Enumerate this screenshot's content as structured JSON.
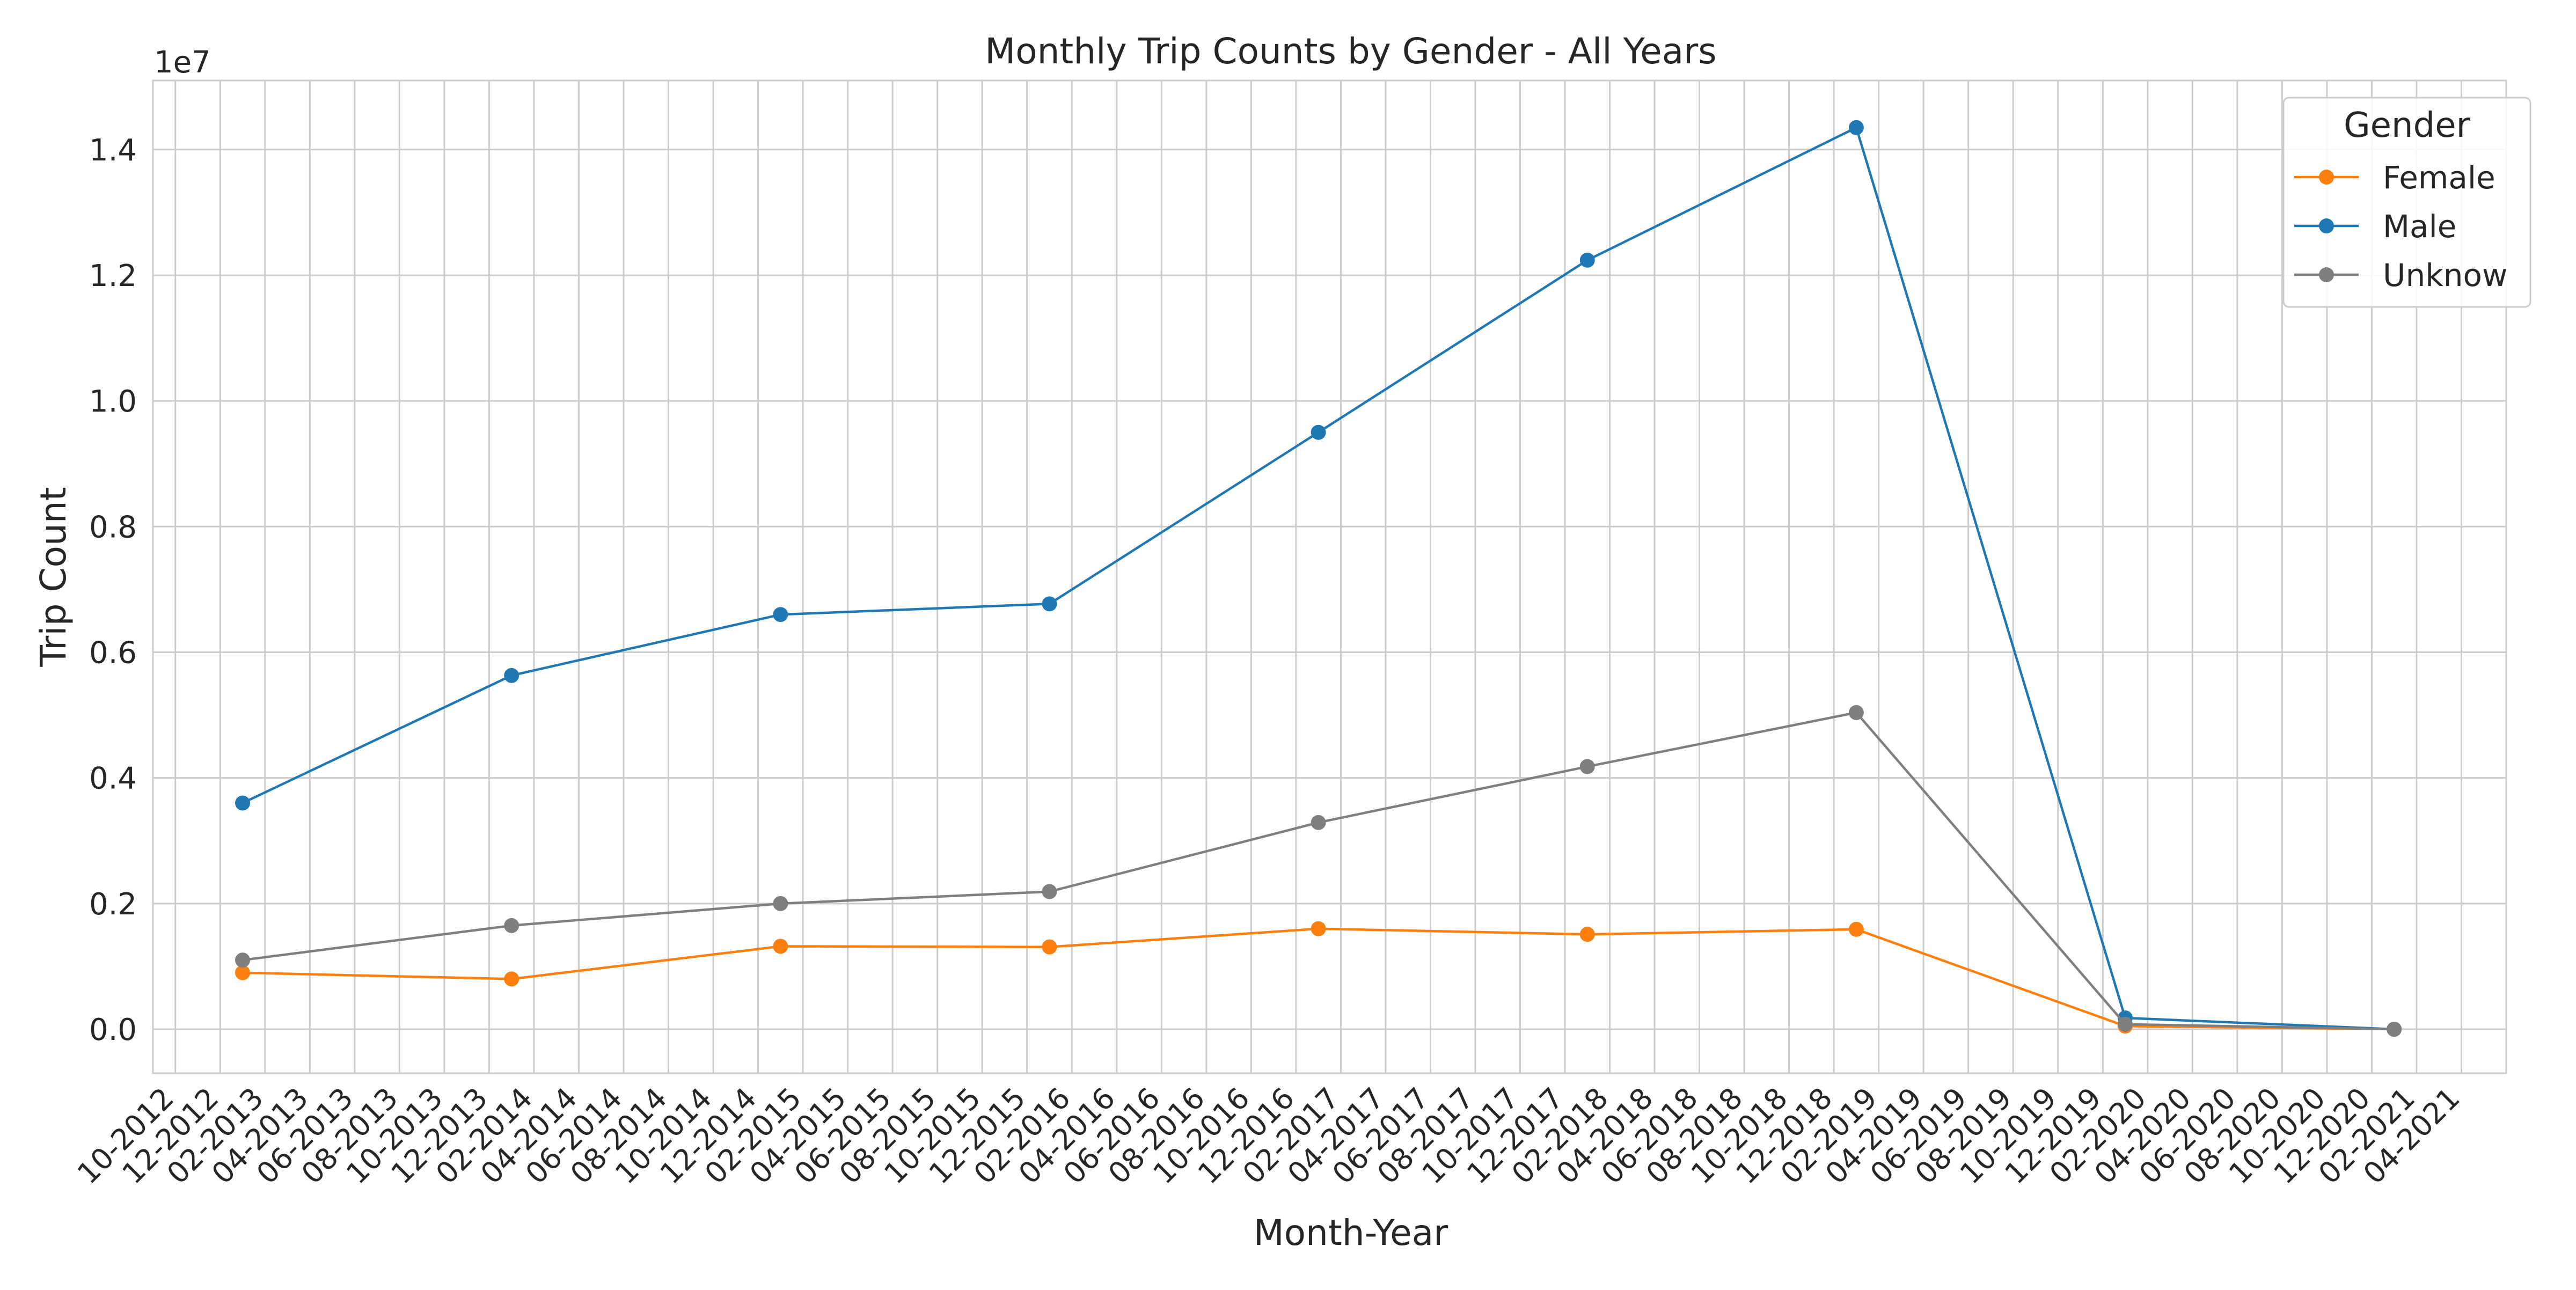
{
  "chart_data": {
    "type": "line",
    "title": "Monthly Trip Counts by Gender - All Years",
    "xlabel": "Month-Year",
    "ylabel": "Trip Count",
    "y_offset_label": "1e7",
    "y_multiplier": 10000000,
    "ylim": [
      -0.07,
      1.51
    ],
    "yticks": [
      0.0,
      0.2,
      0.4,
      0.6,
      0.8,
      1.0,
      1.2,
      1.4
    ],
    "ytick_labels": [
      "0.0",
      "0.2",
      "0.4",
      "0.6",
      "0.8",
      "1.0",
      "1.2",
      "1.4"
    ],
    "xlim": [
      "2012-09",
      "2021-06"
    ],
    "x_tick_labels": [
      "10-2012",
      "12-2012",
      "02-2013",
      "04-2013",
      "06-2013",
      "08-2013",
      "10-2013",
      "12-2013",
      "02-2014",
      "04-2014",
      "06-2014",
      "08-2014",
      "10-2014",
      "12-2014",
      "02-2015",
      "04-2015",
      "06-2015",
      "08-2015",
      "10-2015",
      "12-2015",
      "02-2016",
      "04-2016",
      "06-2016",
      "08-2016",
      "10-2016",
      "12-2016",
      "02-2017",
      "04-2017",
      "06-2017",
      "08-2017",
      "10-2017",
      "12-2017",
      "02-2018",
      "04-2018",
      "06-2018",
      "08-2018",
      "10-2018",
      "12-2018",
      "02-2019",
      "04-2019",
      "06-2019",
      "08-2019",
      "10-2019",
      "12-2019",
      "02-2020",
      "04-2020",
      "06-2020",
      "08-2020",
      "10-2020",
      "12-2020",
      "02-2021",
      "04-2021"
    ],
    "x": [
      "2013-01",
      "2014-01",
      "2015-01",
      "2016-01",
      "2017-01",
      "2018-01",
      "2019-01",
      "2020-01",
      "2021-01"
    ],
    "grid": true,
    "legend": {
      "title": "Gender",
      "placement": "top-right"
    },
    "series": [
      {
        "name": "Female",
        "color": "#ff7f0e",
        "values": [
          0.09,
          0.08,
          0.132,
          0.131,
          0.16,
          0.151,
          0.159,
          0.005,
          0.0
        ]
      },
      {
        "name": "Male",
        "color": "#1f77b4",
        "values": [
          0.36,
          0.563,
          0.66,
          0.677,
          0.95,
          1.224,
          1.435,
          0.018,
          0.0
        ]
      },
      {
        "name": "Unknow",
        "color": "#7f7f7f",
        "values": [
          0.11,
          0.165,
          0.2,
          0.219,
          0.329,
          0.418,
          0.504,
          0.008,
          0.0
        ]
      }
    ]
  }
}
